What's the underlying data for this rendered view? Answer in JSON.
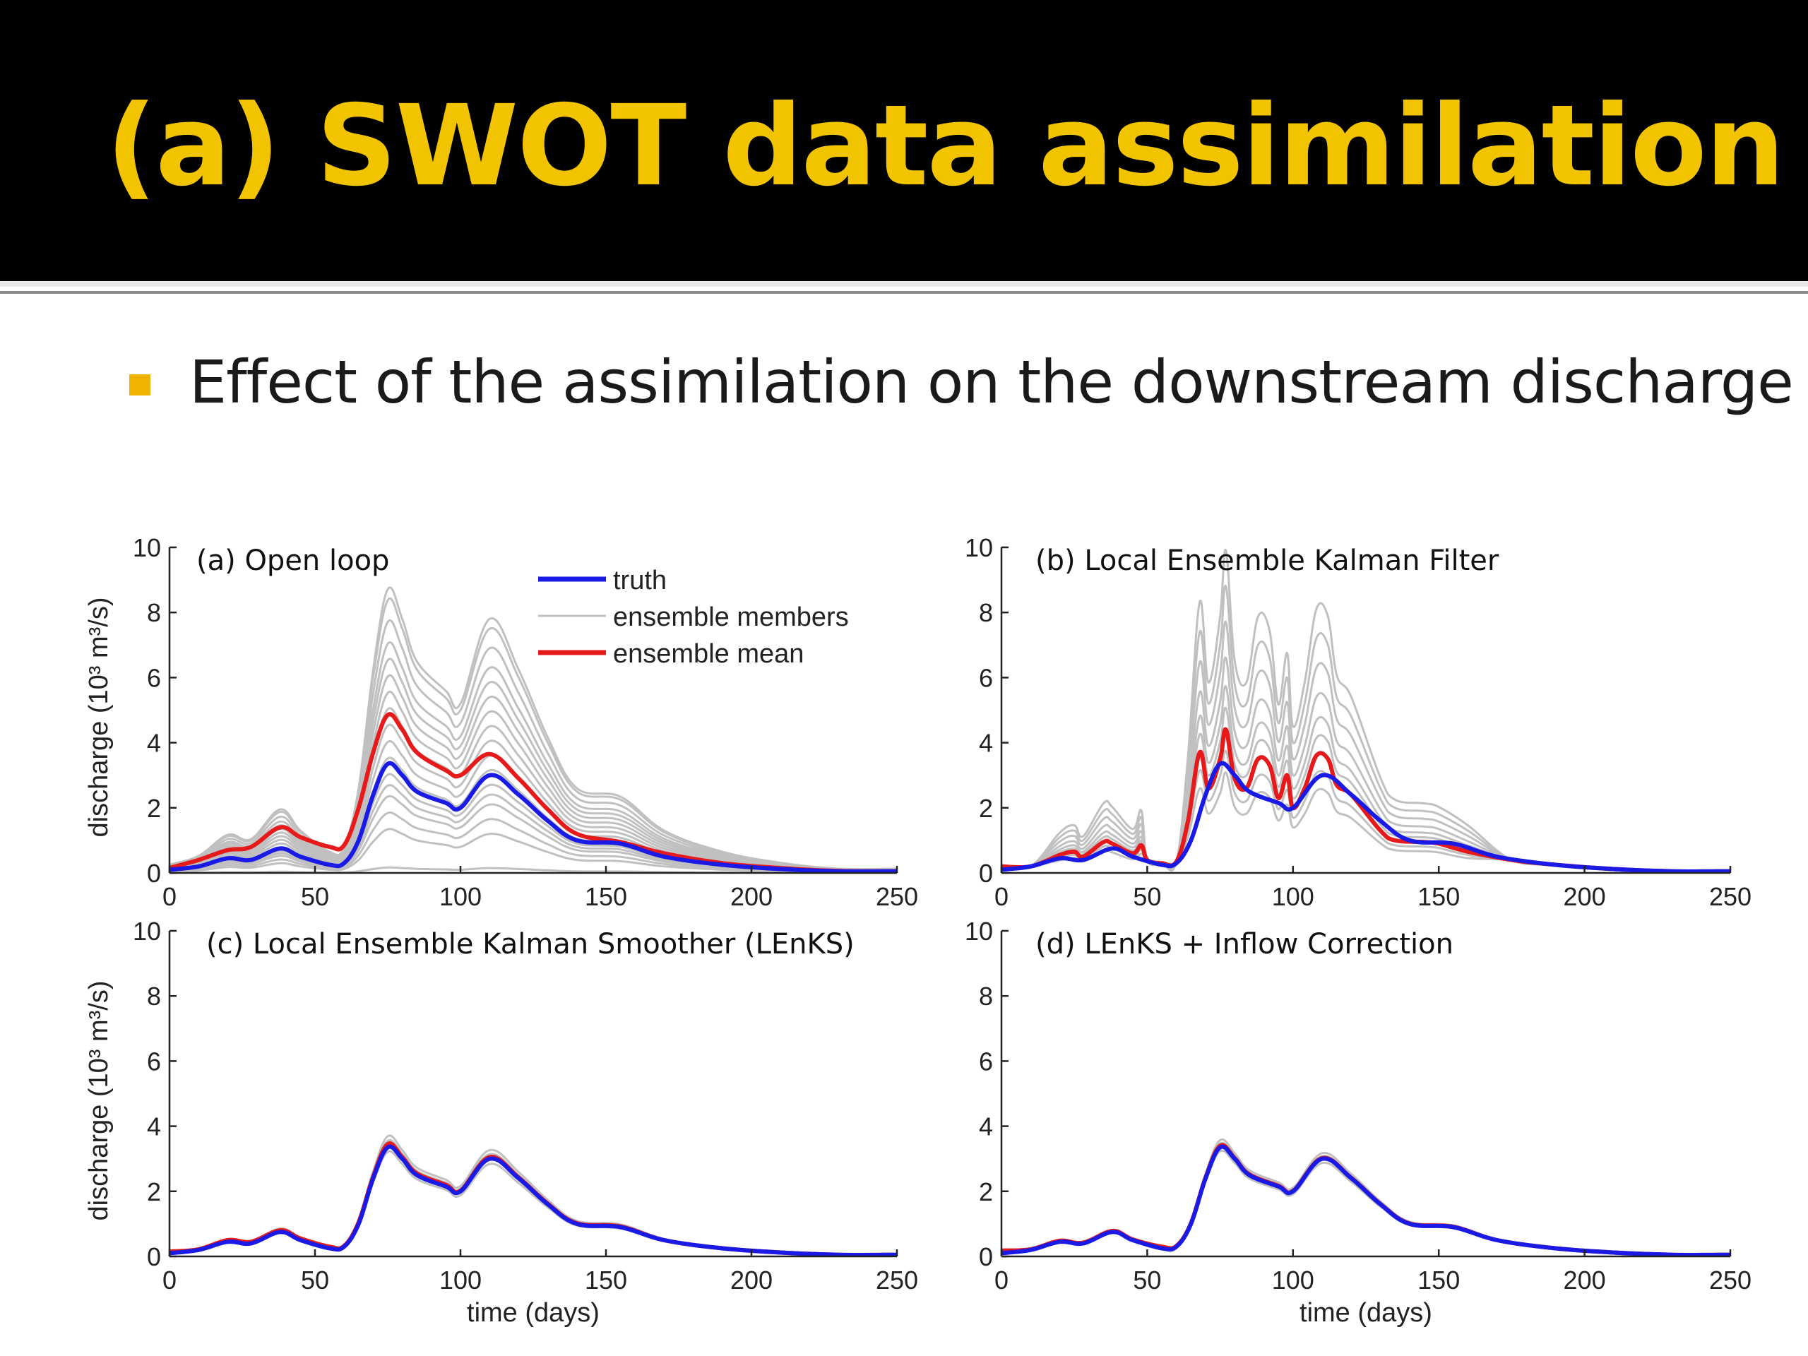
{
  "slide": {
    "title": "(a) SWOT data assimilation",
    "bullet": "Effect of the assimilation on the downstream discharge",
    "colors": {
      "title": "#f2c400",
      "bullet_marker": "#f0b400",
      "background_header": "#000000"
    }
  },
  "chart_data": [
    {
      "type": "line",
      "title": "(a) Open loop",
      "xlabel": "",
      "ylabel": "discharge (10³ m³/s)",
      "xlim": [
        0,
        250
      ],
      "ylim": [
        0,
        10
      ],
      "xticks": [
        0,
        50,
        100,
        150,
        200,
        250
      ],
      "yticks": [
        0,
        2,
        4,
        6,
        8,
        10
      ],
      "legend": {
        "placement": "top-right",
        "entries": [
          "truth",
          "ensemble members",
          "ensemble mean"
        ]
      },
      "series": [
        {
          "name": "truth",
          "color": "#1a1ae6",
          "points": [
            [
              0,
              0.1
            ],
            [
              10,
              0.2
            ],
            [
              20,
              0.45
            ],
            [
              28,
              0.4
            ],
            [
              38,
              0.75
            ],
            [
              45,
              0.5
            ],
            [
              55,
              0.25
            ],
            [
              60,
              0.3
            ],
            [
              65,
              1.0
            ],
            [
              70,
              2.4
            ],
            [
              75,
              3.35
            ],
            [
              80,
              3.0
            ],
            [
              85,
              2.5
            ],
            [
              95,
              2.15
            ],
            [
              100,
              2.0
            ],
            [
              110,
              3.0
            ],
            [
              120,
              2.4
            ],
            [
              130,
              1.6
            ],
            [
              140,
              1.0
            ],
            [
              155,
              0.9
            ],
            [
              170,
              0.5
            ],
            [
              190,
              0.25
            ],
            [
              210,
              0.12
            ],
            [
              230,
              0.05
            ],
            [
              250,
              0.05
            ]
          ]
        },
        {
          "name": "ensemble mean",
          "color": "#e61a1a",
          "points": [
            [
              0,
              0.15
            ],
            [
              10,
              0.4
            ],
            [
              20,
              0.7
            ],
            [
              28,
              0.8
            ],
            [
              38,
              1.4
            ],
            [
              45,
              1.1
            ],
            [
              55,
              0.8
            ],
            [
              60,
              0.85
            ],
            [
              65,
              2.0
            ],
            [
              70,
              3.7
            ],
            [
              75,
              4.85
            ],
            [
              80,
              4.4
            ],
            [
              85,
              3.7
            ],
            [
              95,
              3.15
            ],
            [
              100,
              3.0
            ],
            [
              110,
              3.65
            ],
            [
              120,
              2.9
            ],
            [
              130,
              1.95
            ],
            [
              140,
              1.2
            ],
            [
              155,
              0.95
            ],
            [
              170,
              0.6
            ],
            [
              190,
              0.3
            ],
            [
              210,
              0.15
            ],
            [
              230,
              0.06
            ],
            [
              250,
              0.05
            ]
          ]
        },
        {
          "name": "ensemble members",
          "color": "#c0c0c0",
          "scales": [
            0.05,
            0.4,
            0.55,
            0.7,
            0.8,
            0.9,
            1.05,
            1.2,
            1.35,
            1.5,
            1.65,
            1.8,
            1.95,
            2.1,
            2.3,
            2.5,
            2.6
          ]
        }
      ]
    },
    {
      "type": "line",
      "title": "(b) Local Ensemble Kalman Filter",
      "xlabel": "",
      "ylabel": "",
      "xlim": [
        0,
        250
      ],
      "ylim": [
        0,
        10
      ],
      "xticks": [
        0,
        50,
        100,
        150,
        200,
        250
      ],
      "yticks": [
        0,
        2,
        4,
        6,
        8,
        10
      ],
      "series": [
        {
          "name": "truth",
          "color": "#1a1ae6",
          "points": [
            [
              0,
              0.1
            ],
            [
              10,
              0.2
            ],
            [
              20,
              0.45
            ],
            [
              28,
              0.4
            ],
            [
              38,
              0.75
            ],
            [
              45,
              0.5
            ],
            [
              55,
              0.25
            ],
            [
              60,
              0.3
            ],
            [
              65,
              1.0
            ],
            [
              70,
              2.4
            ],
            [
              75,
              3.35
            ],
            [
              80,
              3.0
            ],
            [
              85,
              2.5
            ],
            [
              95,
              2.15
            ],
            [
              100,
              2.0
            ],
            [
              110,
              3.0
            ],
            [
              120,
              2.4
            ],
            [
              130,
              1.6
            ],
            [
              140,
              1.0
            ],
            [
              155,
              0.9
            ],
            [
              170,
              0.5
            ],
            [
              190,
              0.25
            ],
            [
              210,
              0.12
            ],
            [
              230,
              0.05
            ],
            [
              250,
              0.05
            ]
          ]
        },
        {
          "name": "ensemble mean",
          "color": "#e61a1a",
          "points": [
            [
              0,
              0.2
            ],
            [
              10,
              0.2
            ],
            [
              20,
              0.55
            ],
            [
              25,
              0.65
            ],
            [
              28,
              0.5
            ],
            [
              35,
              0.95
            ],
            [
              38,
              0.9
            ],
            [
              45,
              0.6
            ],
            [
              48,
              0.85
            ],
            [
              50,
              0.4
            ],
            [
              55,
              0.3
            ],
            [
              60,
              0.35
            ],
            [
              64,
              1.6
            ],
            [
              68,
              3.7
            ],
            [
              71,
              2.6
            ],
            [
              75,
              3.5
            ],
            [
              77,
              4.4
            ],
            [
              80,
              2.9
            ],
            [
              84,
              2.6
            ],
            [
              88,
              3.5
            ],
            [
              92,
              3.3
            ],
            [
              95,
              2.3
            ],
            [
              98,
              3.0
            ],
            [
              100,
              2.0
            ],
            [
              104,
              2.6
            ],
            [
              108,
              3.6
            ],
            [
              112,
              3.5
            ],
            [
              115,
              2.7
            ],
            [
              120,
              2.4
            ],
            [
              130,
              1.3
            ],
            [
              135,
              1.0
            ],
            [
              145,
              0.95
            ],
            [
              150,
              0.9
            ],
            [
              160,
              0.65
            ],
            [
              175,
              0.4
            ],
            [
              190,
              0.25
            ],
            [
              210,
              0.12
            ],
            [
              230,
              0.05
            ],
            [
              250,
              0.05
            ]
          ]
        },
        {
          "name": "ensemble members",
          "color": "#c0c0c0",
          "scales": [
            0.7,
            0.85,
            1.0,
            1.15,
            1.3,
            1.5,
            1.75,
            2.0,
            2.25
          ]
        }
      ]
    },
    {
      "type": "line",
      "title": "(c) Local Ensemble Kalman Smoother (LEnKS)",
      "xlabel": "time (days)",
      "ylabel": "discharge (10³ m³/s)",
      "xlim": [
        0,
        250
      ],
      "ylim": [
        0,
        10
      ],
      "xticks": [
        0,
        50,
        100,
        150,
        200,
        250
      ],
      "yticks": [
        0,
        2,
        4,
        6,
        8,
        10
      ],
      "series": [
        {
          "name": "truth",
          "color": "#1a1ae6",
          "points": [
            [
              0,
              0.1
            ],
            [
              10,
              0.2
            ],
            [
              20,
              0.45
            ],
            [
              28,
              0.4
            ],
            [
              38,
              0.75
            ],
            [
              45,
              0.5
            ],
            [
              55,
              0.25
            ],
            [
              60,
              0.3
            ],
            [
              65,
              1.0
            ],
            [
              70,
              2.4
            ],
            [
              75,
              3.35
            ],
            [
              80,
              3.0
            ],
            [
              85,
              2.5
            ],
            [
              95,
              2.15
            ],
            [
              100,
              2.0
            ],
            [
              110,
              3.0
            ],
            [
              120,
              2.4
            ],
            [
              130,
              1.6
            ],
            [
              140,
              1.0
            ],
            [
              155,
              0.9
            ],
            [
              170,
              0.5
            ],
            [
              190,
              0.25
            ],
            [
              210,
              0.12
            ],
            [
              230,
              0.05
            ],
            [
              250,
              0.05
            ]
          ]
        },
        {
          "name": "ensemble mean",
          "color": "#e61a1a",
          "points": [
            [
              0,
              0.15
            ],
            [
              10,
              0.22
            ],
            [
              20,
              0.5
            ],
            [
              28,
              0.45
            ],
            [
              38,
              0.8
            ],
            [
              45,
              0.55
            ],
            [
              55,
              0.3
            ],
            [
              60,
              0.32
            ],
            [
              65,
              1.05
            ],
            [
              70,
              2.45
            ],
            [
              75,
              3.45
            ],
            [
              80,
              3.05
            ],
            [
              85,
              2.55
            ],
            [
              95,
              2.2
            ],
            [
              100,
              2.02
            ],
            [
              110,
              3.05
            ],
            [
              120,
              2.42
            ],
            [
              130,
              1.62
            ],
            [
              140,
              1.02
            ],
            [
              155,
              0.92
            ],
            [
              170,
              0.5
            ],
            [
              190,
              0.25
            ],
            [
              210,
              0.12
            ],
            [
              230,
              0.05
            ],
            [
              250,
              0.05
            ]
          ]
        },
        {
          "name": "ensemble members",
          "color": "#c0c0c0",
          "scales": [
            0.93,
            0.97,
            1.03,
            1.07
          ]
        }
      ]
    },
    {
      "type": "line",
      "title": "(d) LEnKS + Inflow Correction",
      "xlabel": "time (days)",
      "ylabel": "",
      "xlim": [
        0,
        250
      ],
      "ylim": [
        0,
        10
      ],
      "xticks": [
        0,
        50,
        100,
        150,
        200,
        250
      ],
      "yticks": [
        0,
        2,
        4,
        6,
        8,
        10
      ],
      "series": [
        {
          "name": "truth",
          "color": "#1a1ae6",
          "points": [
            [
              0,
              0.1
            ],
            [
              10,
              0.2
            ],
            [
              20,
              0.45
            ],
            [
              28,
              0.4
            ],
            [
              38,
              0.75
            ],
            [
              45,
              0.5
            ],
            [
              55,
              0.25
            ],
            [
              60,
              0.3
            ],
            [
              65,
              1.0
            ],
            [
              70,
              2.4
            ],
            [
              75,
              3.35
            ],
            [
              80,
              3.0
            ],
            [
              85,
              2.5
            ],
            [
              95,
              2.15
            ],
            [
              100,
              2.0
            ],
            [
              110,
              3.0
            ],
            [
              120,
              2.4
            ],
            [
              130,
              1.6
            ],
            [
              140,
              1.0
            ],
            [
              155,
              0.9
            ],
            [
              170,
              0.5
            ],
            [
              190,
              0.25
            ],
            [
              210,
              0.12
            ],
            [
              230,
              0.05
            ],
            [
              250,
              0.05
            ]
          ]
        },
        {
          "name": "ensemble mean",
          "color": "#e61a1a",
          "points": [
            [
              0,
              0.18
            ],
            [
              10,
              0.22
            ],
            [
              20,
              0.48
            ],
            [
              28,
              0.42
            ],
            [
              38,
              0.78
            ],
            [
              45,
              0.52
            ],
            [
              55,
              0.3
            ],
            [
              60,
              0.32
            ],
            [
              65,
              1.02
            ],
            [
              70,
              2.42
            ],
            [
              75,
              3.4
            ],
            [
              80,
              3.02
            ],
            [
              85,
              2.52
            ],
            [
              95,
              2.17
            ],
            [
              100,
              2.01
            ],
            [
              110,
              3.02
            ],
            [
              120,
              2.41
            ],
            [
              130,
              1.61
            ],
            [
              140,
              1.01
            ],
            [
              155,
              0.91
            ],
            [
              170,
              0.5
            ],
            [
              190,
              0.25
            ],
            [
              210,
              0.12
            ],
            [
              230,
              0.05
            ],
            [
              250,
              0.05
            ]
          ]
        },
        {
          "name": "ensemble members",
          "color": "#c0c0c0",
          "scales": [
            0.95,
            0.98,
            1.02,
            1.05
          ]
        }
      ]
    }
  ]
}
